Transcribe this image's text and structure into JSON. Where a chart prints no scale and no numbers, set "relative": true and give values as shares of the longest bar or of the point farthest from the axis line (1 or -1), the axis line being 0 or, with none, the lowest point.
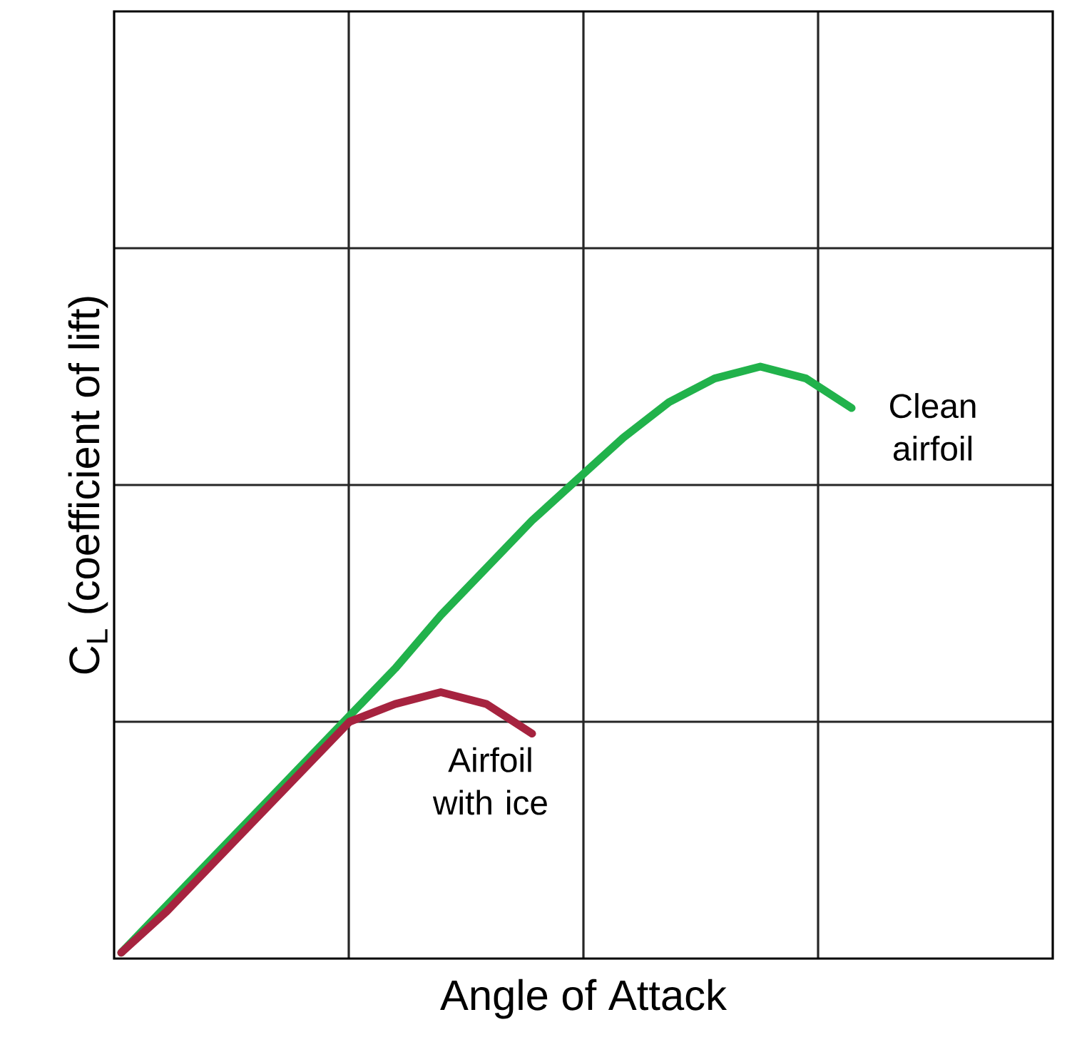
{
  "chart_data": {
    "type": "line",
    "xlabel": "Angle of Attack",
    "ylabel": "C$_{L}$  (coefficient of lift)",
    "relative": true,
    "grid": true,
    "categories": [
      null,
      null,
      null,
      null,
      null,
      null,
      null,
      null,
      null,
      null,
      null,
      null,
      null,
      null,
      null,
      null,
      null,
      null,
      null,
      null,
      null
    ],
    "series": [
      {
        "name": "Clean airfoil",
        "color": "#21b24b",
        "values": [
          0.01,
          0.09,
          0.17,
          0.25,
          0.33,
          0.41,
          0.49,
          0.58,
          0.66,
          0.74,
          0.81,
          0.88,
          0.94,
          0.98,
          1.0,
          0.98,
          0.93,
          null,
          null,
          null,
          null
        ]
      },
      {
        "name": "Airfoil with ice",
        "color": "#a6233f",
        "values": [
          0.01,
          0.08,
          0.16,
          0.24,
          0.32,
          0.4,
          0.43,
          0.45,
          0.43,
          0.38,
          null,
          null,
          null,
          null,
          null,
          null,
          null,
          null,
          null,
          null,
          null
        ]
      }
    ]
  }
}
